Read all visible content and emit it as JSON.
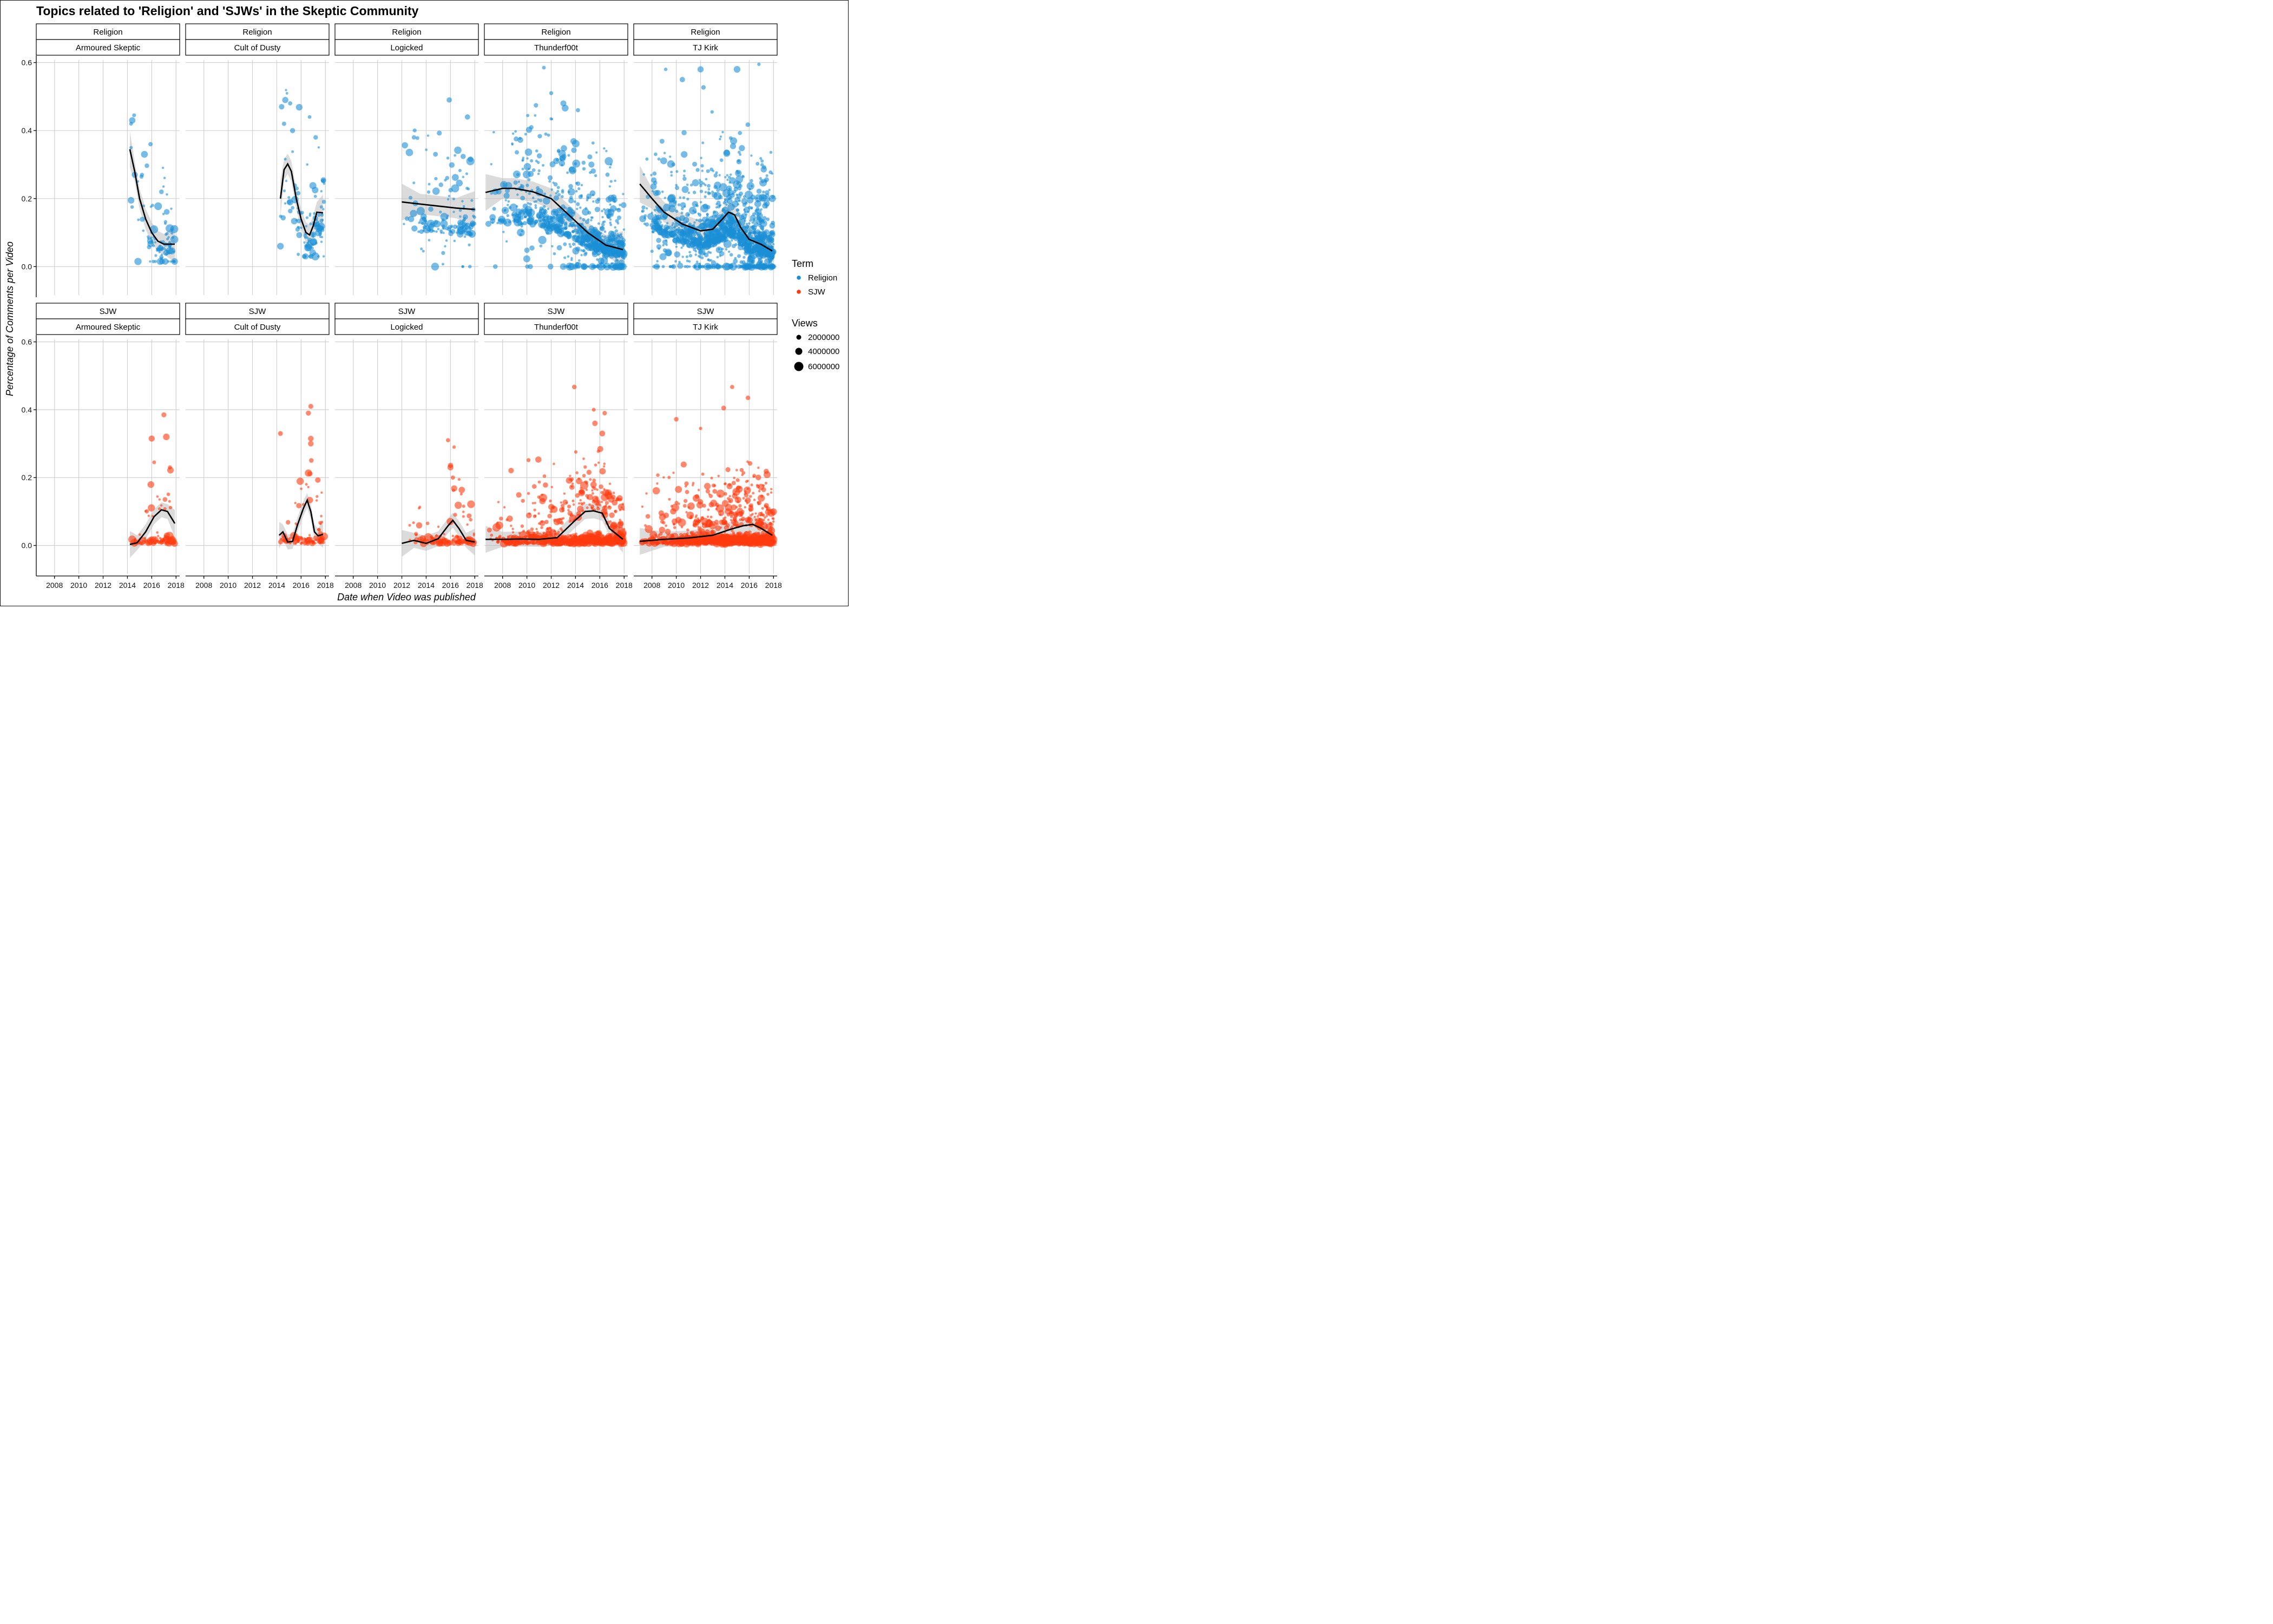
{
  "chart_data": {
    "type": "scatter",
    "title": "Topics related to 'Religion' and 'SJWs' in the Skeptic Community",
    "xlabel": "Date when Video was published",
    "ylabel": "Percentage of Comments per Video",
    "x_ticks": [
      "2008",
      "2010",
      "2012",
      "2014",
      "2016",
      "2018"
    ],
    "y_ticks": [
      "0.0",
      "0.2",
      "0.4",
      "0.6"
    ],
    "xlim": [
      2006.5,
      2018.3
    ],
    "ylim": [
      -0.09,
      0.62
    ],
    "grid": true,
    "legend_position": "right",
    "row_facets": [
      "Religion",
      "SJW"
    ],
    "col_facets": [
      "Armoured Skeptic",
      "Cult of Dusty",
      "Logicked",
      "Thunderf00t",
      "TJ Kirk"
    ],
    "legend": {
      "term_title": "Term",
      "terms": [
        {
          "label": "Religion",
          "color": "#1a8fd6"
        },
        {
          "label": "SJW",
          "color": "#ff3b0f"
        }
      ],
      "views_title": "Views",
      "views": [
        "2000000",
        "4000000",
        "6000000"
      ]
    },
    "series_colors": {
      "Religion": "#1a8fd6",
      "SJW": "#ff3b0f",
      "smooth": "#000000",
      "band": "#bdbdbd"
    },
    "smooth_lines": {
      "Religion": {
        "Armoured Skeptic": [
          [
            2014.2,
            0.345
          ],
          [
            2014.6,
            0.28
          ],
          [
            2015.0,
            0.2
          ],
          [
            2015.5,
            0.14
          ],
          [
            2016.0,
            0.1
          ],
          [
            2016.5,
            0.075
          ],
          [
            2017.0,
            0.066
          ],
          [
            2017.9,
            0.066
          ]
        ],
        "Cult of Dusty": [
          [
            2014.3,
            0.2
          ],
          [
            2014.6,
            0.285
          ],
          [
            2014.9,
            0.302
          ],
          [
            2015.2,
            0.28
          ],
          [
            2015.6,
            0.2
          ],
          [
            2016.0,
            0.14
          ],
          [
            2016.4,
            0.1
          ],
          [
            2016.7,
            0.093
          ],
          [
            2017.0,
            0.12
          ],
          [
            2017.3,
            0.16
          ],
          [
            2017.8,
            0.158
          ]
        ],
        "Logicked": [
          [
            2012.0,
            0.19
          ],
          [
            2013.5,
            0.184
          ],
          [
            2015.0,
            0.178
          ],
          [
            2016.5,
            0.172
          ],
          [
            2018.0,
            0.168
          ]
        ],
        "Thunderf00t": [
          [
            2006.6,
            0.218
          ],
          [
            2008.0,
            0.23
          ],
          [
            2009.0,
            0.23
          ],
          [
            2010.5,
            0.22
          ],
          [
            2012.0,
            0.2
          ],
          [
            2013.5,
            0.15
          ],
          [
            2015.0,
            0.1
          ],
          [
            2016.5,
            0.063
          ],
          [
            2017.9,
            0.05
          ]
        ],
        "TJ Kirk": [
          [
            2007.0,
            0.243
          ],
          [
            2008.0,
            0.2
          ],
          [
            2009.0,
            0.16
          ],
          [
            2010.5,
            0.125
          ],
          [
            2012.0,
            0.105
          ],
          [
            2013.0,
            0.11
          ],
          [
            2013.8,
            0.14
          ],
          [
            2014.3,
            0.16
          ],
          [
            2014.8,
            0.152
          ],
          [
            2015.3,
            0.115
          ],
          [
            2016.0,
            0.08
          ],
          [
            2017.0,
            0.065
          ],
          [
            2017.9,
            0.046
          ]
        ]
      },
      "SJW": {
        "Armoured Skeptic": [
          [
            2014.2,
            0.003
          ],
          [
            2014.8,
            0.008
          ],
          [
            2015.5,
            0.04
          ],
          [
            2016.2,
            0.085
          ],
          [
            2016.8,
            0.105
          ],
          [
            2017.3,
            0.1
          ],
          [
            2017.9,
            0.065
          ]
        ],
        "Cult of Dusty": [
          [
            2014.2,
            0.03
          ],
          [
            2014.5,
            0.04
          ],
          [
            2014.9,
            0.01
          ],
          [
            2015.3,
            0.012
          ],
          [
            2015.7,
            0.06
          ],
          [
            2016.2,
            0.11
          ],
          [
            2016.5,
            0.133
          ],
          [
            2016.8,
            0.1
          ],
          [
            2017.1,
            0.04
          ],
          [
            2017.4,
            0.028
          ],
          [
            2017.8,
            0.033
          ]
        ],
        "Logicked": [
          [
            2012.0,
            0.006
          ],
          [
            2013.0,
            0.015
          ],
          [
            2014.0,
            0.006
          ],
          [
            2015.0,
            0.02
          ],
          [
            2015.8,
            0.058
          ],
          [
            2016.2,
            0.074
          ],
          [
            2016.7,
            0.05
          ],
          [
            2017.3,
            0.015
          ],
          [
            2018.0,
            0.01
          ]
        ],
        "Thunderf00t": [
          [
            2006.6,
            0.018
          ],
          [
            2008.0,
            0.018
          ],
          [
            2009.5,
            0.019
          ],
          [
            2011.0,
            0.018
          ],
          [
            2012.5,
            0.023
          ],
          [
            2014.0,
            0.075
          ],
          [
            2014.8,
            0.1
          ],
          [
            2015.5,
            0.102
          ],
          [
            2016.2,
            0.095
          ],
          [
            2016.8,
            0.05
          ],
          [
            2017.9,
            0.018
          ]
        ],
        "TJ Kirk": [
          [
            2007.0,
            0.012
          ],
          [
            2009.0,
            0.018
          ],
          [
            2011.0,
            0.022
          ],
          [
            2013.0,
            0.03
          ],
          [
            2014.5,
            0.048
          ],
          [
            2015.5,
            0.058
          ],
          [
            2016.3,
            0.062
          ],
          [
            2017.0,
            0.05
          ],
          [
            2017.9,
            0.03
          ]
        ]
      }
    },
    "point_clouds": {
      "Religion": {
        "Armoured Skeptic": {
          "x_range": [
            2014.2,
            2017.9
          ],
          "count": 90,
          "trend": "smooth",
          "spread_low": 0.015,
          "outliers": [
            [
              2014.3,
              0.42
            ],
            [
              2014.4,
              0.43
            ],
            [
              2014.55,
              0.445
            ],
            [
              2014.3,
              0.35
            ],
            [
              2014.6,
              0.27
            ],
            [
              2015.9,
              0.36
            ],
            [
              2014.3,
              0.195
            ],
            [
              2015.2,
              0.27
            ],
            [
              2015.4,
              0.33
            ],
            [
              2016.8,
              0.22
            ]
          ]
        },
        "Cult of Dusty": {
          "x_range": [
            2014.2,
            2017.9
          ],
          "count": 110,
          "trend": "smooth",
          "spread_low": 0.03,
          "outliers": [
            [
              2014.4,
              0.47
            ],
            [
              2014.7,
              0.49
            ],
            [
              2015.1,
              0.48
            ],
            [
              2014.6,
              0.42
            ],
            [
              2016.7,
              0.44
            ],
            [
              2017.2,
              0.38
            ],
            [
              2014.3,
              0.06
            ],
            [
              2015.3,
              0.4
            ]
          ]
        },
        "Logicked": {
          "x_range": [
            2012.0,
            2018.0
          ],
          "count": 150,
          "trend": "smooth",
          "spread_low": 0.0,
          "outliers": [
            [
              2015.9,
              0.49
            ],
            [
              2017.4,
              0.44
            ],
            [
              2013.0,
              0.38
            ],
            [
              2015.4,
              0.04
            ],
            [
              2017.6,
              0.0
            ]
          ]
        },
        "Thunderf00t": {
          "x_range": [
            2006.6,
            2018.0
          ],
          "count": 900,
          "trend": "smooth",
          "spread_low": 0.0,
          "outliers": [
            [
              2011.4,
              0.585
            ],
            [
              2012.0,
              0.51
            ],
            [
              2007.4,
              0.0
            ],
            [
              2014.2,
              0.46
            ],
            [
              2013.0,
              0.48
            ]
          ]
        },
        "TJ Kirk": {
          "x_range": [
            2007.0,
            2018.0
          ],
          "count": 1400,
          "trend": "smooth",
          "spread_low": 0.0,
          "outliers": [
            [
              2016.8,
              0.595
            ],
            [
              2015.0,
              0.58
            ],
            [
              2012.0,
              0.58
            ],
            [
              2010.5,
              0.55
            ],
            [
              2008.0,
              0.045
            ]
          ]
        }
      },
      "SJW": {
        "Armoured Skeptic": {
          "x_range": [
            2014.2,
            2017.9
          ],
          "count": 90,
          "trend": "smooth",
          "spread_low": 0.0,
          "outliers": [
            [
              2017.0,
              0.385
            ],
            [
              2016.0,
              0.315
            ],
            [
              2017.2,
              0.32
            ],
            [
              2016.2,
              0.245
            ],
            [
              2017.5,
              0.23
            ]
          ]
        },
        "Cult of Dusty": {
          "x_range": [
            2014.2,
            2017.9
          ],
          "count": 100,
          "trend": "smooth",
          "spread_low": 0.0,
          "outliers": [
            [
              2016.8,
              0.41
            ],
            [
              2016.6,
              0.39
            ],
            [
              2014.3,
              0.33
            ],
            [
              2016.8,
              0.315
            ],
            [
              2016.8,
              0.3
            ]
          ]
        },
        "Logicked": {
          "x_range": [
            2012.0,
            2018.0
          ],
          "count": 120,
          "trend": "smooth",
          "spread_low": 0.0,
          "outliers": [
            [
              2015.8,
              0.31
            ],
            [
              2016.3,
              0.29
            ],
            [
              2016.0,
              0.23
            ],
            [
              2016.2,
              0.2
            ]
          ]
        },
        "Thunderf00t": {
          "x_range": [
            2006.6,
            2018.0
          ],
          "count": 900,
          "trend": "smooth",
          "spread_low": 0.0,
          "outliers": [
            [
              2013.9,
              0.467
            ],
            [
              2015.5,
              0.4
            ],
            [
              2016.4,
              0.39
            ],
            [
              2015.6,
              0.36
            ],
            [
              2016.2,
              0.33
            ]
          ]
        },
        "TJ Kirk": {
          "x_range": [
            2007.0,
            2018.0
          ],
          "count": 1300,
          "trend": "smooth",
          "spread_low": 0.0,
          "outliers": [
            [
              2014.6,
              0.467
            ],
            [
              2015.9,
              0.435
            ],
            [
              2013.9,
              0.405
            ],
            [
              2010.0,
              0.372
            ],
            [
              2012.0,
              0.345
            ]
          ]
        }
      }
    }
  }
}
